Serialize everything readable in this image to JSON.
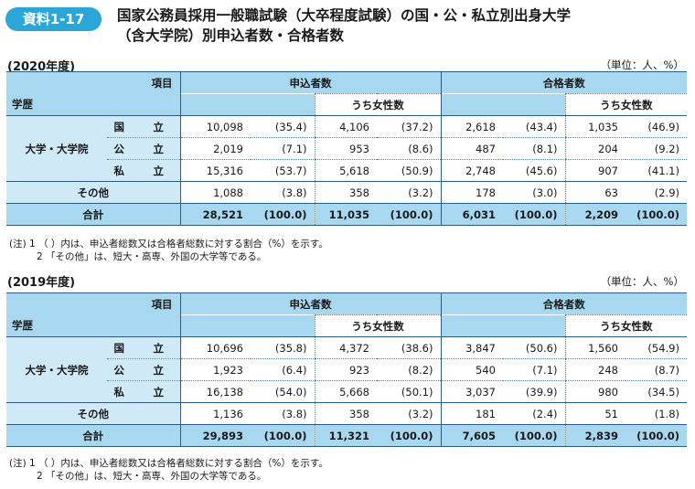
{
  "badge": "資料1-17",
  "title_line1": "国家公務員採用一般職試験（大卒程度試験）の国・公・私立別出身大学",
  "title_line2": "（含大学院）別申込者数・合格者数",
  "unit": "（単位：人、%）",
  "header": {
    "item": "項目",
    "education": "学歴",
    "applicants": "申込者数",
    "passers": "合格者数",
    "female": "うち女性数"
  },
  "labels": {
    "university": "大学・大学院",
    "national": "国　立",
    "public": "公　立",
    "private": "私　立",
    "other": "その他",
    "total": "合計"
  },
  "notes": {
    "n1": "(注) 1 （ ）内は、申込者総数又は合格者総数に対する割合（%）を示す。",
    "n2": "2 「その他」は、短大・高専、外国の大学等である。"
  },
  "y2020": {
    "year": "(2020年度)",
    "rows": [
      [
        "10,098",
        "(35.4)",
        "4,106",
        "(37.2)",
        "2,618",
        "(43.4)",
        "1,035",
        "(46.9)"
      ],
      [
        "2,019",
        "(7.1)",
        "953",
        "(8.6)",
        "487",
        "(8.1)",
        "204",
        "(9.2)"
      ],
      [
        "15,316",
        "(53.7)",
        "5,618",
        "(50.9)",
        "2,748",
        "(45.6)",
        "907",
        "(41.1)"
      ],
      [
        "1,088",
        "(3.8)",
        "358",
        "(3.2)",
        "178",
        "(3.0)",
        "63",
        "(2.9)"
      ],
      [
        "28,521",
        "(100.0)",
        "11,035",
        "(100.0)",
        "6,031",
        "(100.0)",
        "2,209",
        "(100.0)"
      ]
    ]
  },
  "y2019": {
    "year": "(2019年度)",
    "rows": [
      [
        "10,696",
        "(35.8)",
        "4,372",
        "(38.6)",
        "3,847",
        "(50.6)",
        "1,560",
        "(54.9)"
      ],
      [
        "1,923",
        "(6.4)",
        "923",
        "(8.2)",
        "540",
        "(7.1)",
        "248",
        "(8.7)"
      ],
      [
        "16,138",
        "(54.0)",
        "5,668",
        "(50.1)",
        "3,037",
        "(39.9)",
        "980",
        "(34.5)"
      ],
      [
        "1,136",
        "(3.8)",
        "358",
        "(3.2)",
        "181",
        "(2.4)",
        "51",
        "(1.8)"
      ],
      [
        "29,893",
        "(100.0)",
        "11,321",
        "(100.0)",
        "7,605",
        "(100.0)",
        "2,839",
        "(100.0)"
      ]
    ]
  }
}
